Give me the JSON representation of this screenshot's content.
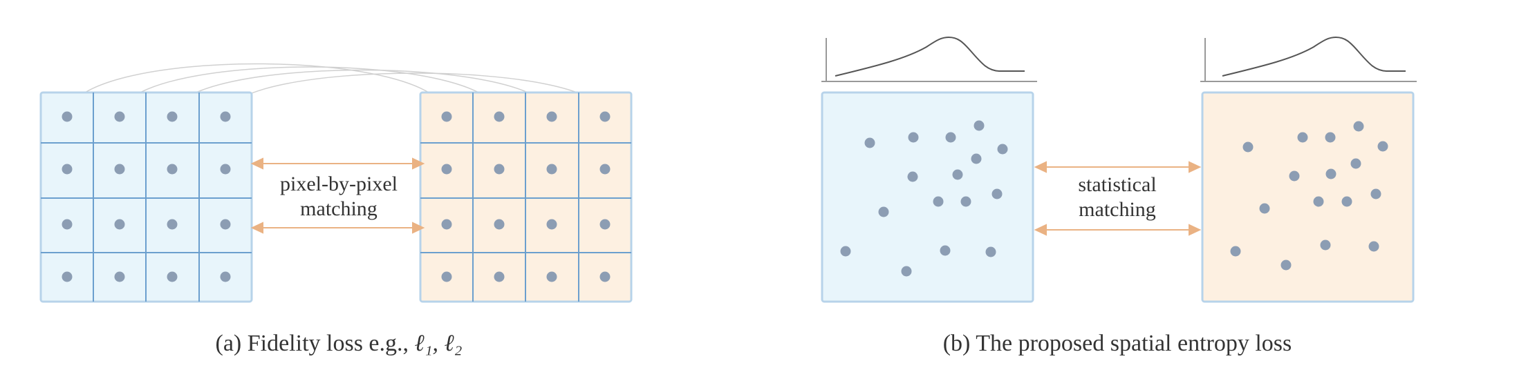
{
  "panel_a": {
    "middle_label": [
      "pixel-by-pixel",
      "matching"
    ],
    "caption_prefix": "(a) Fidelity loss e.g., ",
    "caption_math": "ℓ₁, ℓ₂",
    "left_color": "#e8f5fb",
    "right_color": "#fdf0e1",
    "grid_stroke": "#6b9fce",
    "dot_color": "#8c9db3",
    "arrow_color": "#eab283",
    "arc_color": "#d0d0d0"
  },
  "panel_b": {
    "middle_label": [
      "statistical",
      "matching"
    ],
    "caption": "(b) The proposed spatial entropy loss",
    "curve_color": "#555555",
    "axis_color": "#999999"
  }
}
